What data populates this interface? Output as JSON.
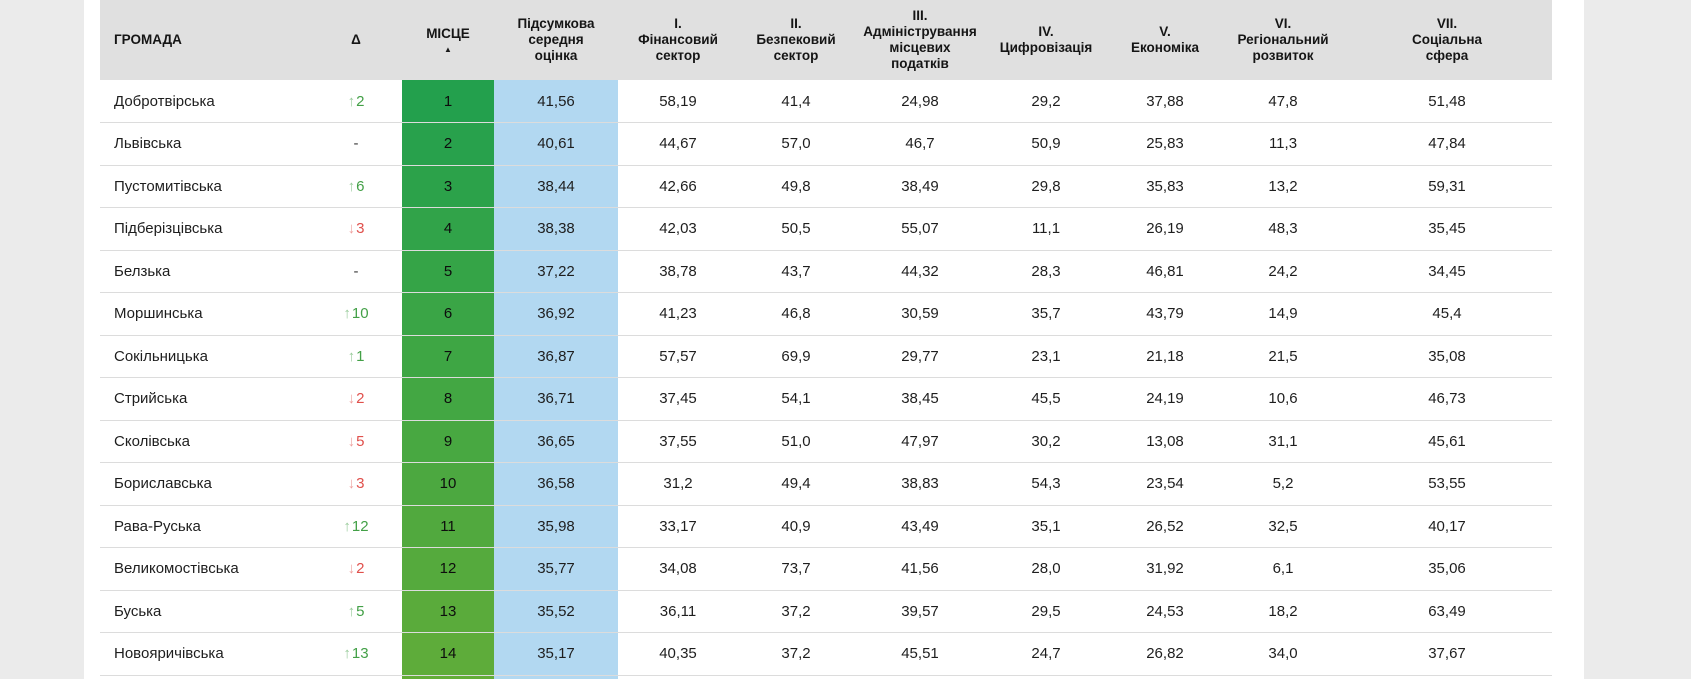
{
  "colors": {
    "page_bg": "#ebebeb",
    "card_bg": "#ffffff",
    "header_bg": "#e0e0e0",
    "score_bg": "#b2d8f1",
    "separator": "#dcdcdc",
    "up": "#43a047",
    "down": "#e0504c"
  },
  "table": {
    "sort_indicator": "▲",
    "columns": [
      {
        "id": "name",
        "label": "ГРОМАДА"
      },
      {
        "id": "delta",
        "label": "Δ"
      },
      {
        "id": "place",
        "label": "МІСЦЕ",
        "sorted": true
      },
      {
        "id": "total",
        "label": "Підсумкова\nсередня\nоцінка"
      },
      {
        "id": "s1",
        "label": "I.\nФінансовий\nсектор"
      },
      {
        "id": "s2",
        "label": "II.\nБезпековий\nсектор"
      },
      {
        "id": "s3",
        "label": "III.\nАдміністрування\nмісцевих\nподатків"
      },
      {
        "id": "s4",
        "label": "IV.\nЦифровізація"
      },
      {
        "id": "s5",
        "label": "V.\nЕкономіка"
      },
      {
        "id": "s6",
        "label": "VI.\nРегіональний\nрозвиток"
      },
      {
        "id": "s7",
        "label": "VII.\nСоціальна\nсфера"
      }
    ],
    "rows": [
      {
        "name": "Добротвірська",
        "delta_dir": "up",
        "delta_arrow": "↑",
        "delta_value": "2",
        "place": "1",
        "place_color": "#23a04d",
        "total": "41,56",
        "s1": "58,19",
        "s2": "41,4",
        "s3": "24,98",
        "s4": "29,2",
        "s5": "37,88",
        "s6": "47,8",
        "s7": "51,48"
      },
      {
        "name": "Львівська",
        "delta_dir": "none",
        "delta_arrow": "",
        "delta_value": "-",
        "place": "2",
        "place_color": "#28a14c",
        "total": "40,61",
        "s1": "44,67",
        "s2": "57,0",
        "s3": "46,7",
        "s4": "50,9",
        "s5": "25,83",
        "s6": "11,3",
        "s7": "47,84"
      },
      {
        "name": "Пустомитівська",
        "delta_dir": "up",
        "delta_arrow": "↑",
        "delta_value": "6",
        "place": "3",
        "place_color": "#2ca24a",
        "total": "38,44",
        "s1": "42,66",
        "s2": "49,8",
        "s3": "38,49",
        "s4": "29,8",
        "s5": "35,83",
        "s6": "13,2",
        "s7": "59,31"
      },
      {
        "name": "Підберізцівська",
        "delta_dir": "down",
        "delta_arrow": "↓",
        "delta_value": "3",
        "place": "4",
        "place_color": "#31a349",
        "total": "38,38",
        "s1": "42,03",
        "s2": "50,5",
        "s3": "55,07",
        "s4": "11,1",
        "s5": "26,19",
        "s6": "48,3",
        "s7": "35,45"
      },
      {
        "name": "Белзька",
        "delta_dir": "none",
        "delta_arrow": "",
        "delta_value": "-",
        "place": "5",
        "place_color": "#35a447",
        "total": "37,22",
        "s1": "38,78",
        "s2": "43,7",
        "s3": "44,32",
        "s4": "28,3",
        "s5": "46,81",
        "s6": "24,2",
        "s7": "34,45"
      },
      {
        "name": "Моршинська",
        "delta_dir": "up",
        "delta_arrow": "↑",
        "delta_value": "10",
        "place": "6",
        "place_color": "#3aa546",
        "total": "36,92",
        "s1": "41,23",
        "s2": "46,8",
        "s3": "30,59",
        "s4": "35,7",
        "s5": "43,79",
        "s6": "14,9",
        "s7": "45,4"
      },
      {
        "name": "Сокільницька",
        "delta_dir": "up",
        "delta_arrow": "↑",
        "delta_value": "1",
        "place": "7",
        "place_color": "#3ea644",
        "total": "36,87",
        "s1": "57,57",
        "s2": "69,9",
        "s3": "29,77",
        "s4": "23,1",
        "s5": "21,18",
        "s6": "21,5",
        "s7": "35,08"
      },
      {
        "name": "Стрийська",
        "delta_dir": "down",
        "delta_arrow": "↓",
        "delta_value": "2",
        "place": "8",
        "place_color": "#43a743",
        "total": "36,71",
        "s1": "37,45",
        "s2": "54,1",
        "s3": "38,45",
        "s4": "45,5",
        "s5": "24,19",
        "s6": "10,6",
        "s7": "46,73"
      },
      {
        "name": "Сколівська",
        "delta_dir": "down",
        "delta_arrow": "↓",
        "delta_value": "5",
        "place": "9",
        "place_color": "#48a841",
        "total": "36,65",
        "s1": "37,55",
        "s2": "51,0",
        "s3": "47,97",
        "s4": "30,2",
        "s5": "13,08",
        "s6": "31,1",
        "s7": "45,61"
      },
      {
        "name": "Бориславська",
        "delta_dir": "down",
        "delta_arrow": "↓",
        "delta_value": "3",
        "place": "10",
        "place_color": "#4ca840",
        "total": "36,58",
        "s1": "31,2",
        "s2": "49,4",
        "s3": "38,83",
        "s4": "54,3",
        "s5": "23,54",
        "s6": "5,2",
        "s7": "53,55"
      },
      {
        "name": "Рава-Руська",
        "delta_dir": "up",
        "delta_arrow": "↑",
        "delta_value": "12",
        "place": "11",
        "place_color": "#51a93e",
        "total": "35,98",
        "s1": "33,17",
        "s2": "40,9",
        "s3": "43,49",
        "s4": "35,1",
        "s5": "26,52",
        "s6": "32,5",
        "s7": "40,17"
      },
      {
        "name": "Великомостівська",
        "delta_dir": "down",
        "delta_arrow": "↓",
        "delta_value": "2",
        "place": "12",
        "place_color": "#55aa3d",
        "total": "35,77",
        "s1": "34,08",
        "s2": "73,7",
        "s3": "41,56",
        "s4": "28,0",
        "s5": "31,92",
        "s6": "6,1",
        "s7": "35,06"
      },
      {
        "name": "Буська",
        "delta_dir": "up",
        "delta_arrow": "↑",
        "delta_value": "5",
        "place": "13",
        "place_color": "#5aab3b",
        "total": "35,52",
        "s1": "36,11",
        "s2": "37,2",
        "s3": "39,57",
        "s4": "29,5",
        "s5": "24,53",
        "s6": "18,2",
        "s7": "63,49"
      },
      {
        "name": "Новояричівська",
        "delta_dir": "up",
        "delta_arrow": "↑",
        "delta_value": "13",
        "place": "14",
        "place_color": "#5eac3a",
        "total": "35,17",
        "s1": "40,35",
        "s2": "37,2",
        "s3": "45,51",
        "s4": "24,7",
        "s5": "26,82",
        "s6": "34,0",
        "s7": "37,67"
      },
      {
        "partial": true,
        "place_color": "#63ad38"
      }
    ]
  }
}
